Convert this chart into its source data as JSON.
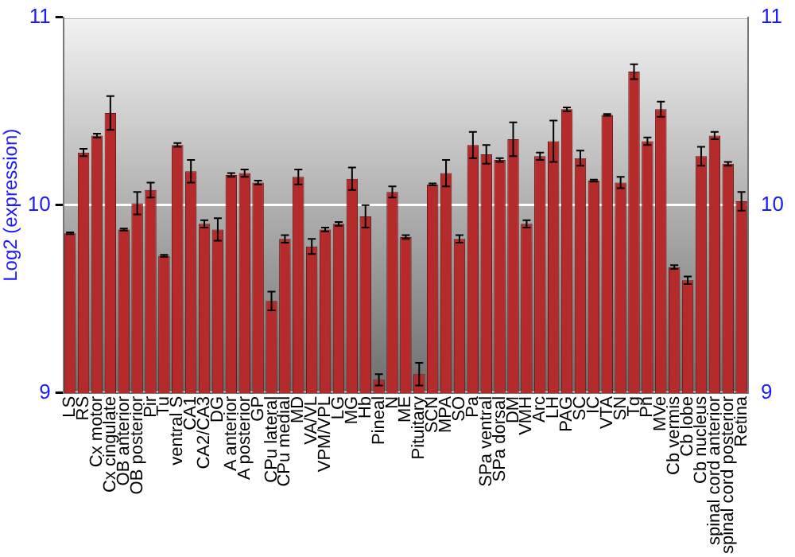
{
  "chart_data": {
    "type": "bar",
    "ylabel": "Log2 (expression)",
    "categories": [
      "LS",
      "RS",
      "Cx motor",
      "Cx cingulate",
      "OB anterior",
      "OB posterior",
      "Pir",
      "Tu",
      "ventral S",
      "CA1",
      "CA2/CA3",
      "DG",
      "A anterior",
      "A posterior",
      "GP",
      "CPu lateral",
      "CPu medial",
      "MD",
      "VA/VL",
      "VPM/VPL",
      "LG",
      "MG",
      "Hb",
      "Pineal",
      "N",
      "ME",
      "Pituitary",
      "SCN",
      "MPA",
      "SO",
      "Pa",
      "SPa ventral",
      "SPa dorsal",
      "DM",
      "VMH",
      "Arc",
      "LH",
      "PAG",
      "SC",
      "IC",
      "VTA",
      "SN",
      "Tg",
      "Pn",
      "MVe",
      "Cb vermis",
      "Cb lobe",
      "Cb nucleus",
      "spinal cord anterior",
      "spinal cord posterior",
      "Retina"
    ],
    "values": [
      9.85,
      10.28,
      10.37,
      10.49,
      9.87,
      10.01,
      10.08,
      9.73,
      10.32,
      10.18,
      9.9,
      9.87,
      10.16,
      10.17,
      10.12,
      9.49,
      9.82,
      10.15,
      9.78,
      9.87,
      9.9,
      10.14,
      9.94,
      9.07,
      10.07,
      9.83,
      9.1,
      10.11,
      10.17,
      9.82,
      10.32,
      10.27,
      10.24,
      10.35,
      9.9,
      10.26,
      10.34,
      10.51,
      10.25,
      10.13,
      10.48,
      10.12,
      10.71,
      10.34,
      10.51,
      9.67,
      9.6,
      10.26,
      10.37,
      10.22,
      10.02
    ],
    "errors": [
      0.005,
      0.02,
      0.01,
      0.09,
      0.005,
      0.06,
      0.04,
      0.005,
      0.01,
      0.06,
      0.02,
      0.06,
      0.01,
      0.02,
      0.01,
      0.05,
      0.02,
      0.04,
      0.04,
      0.01,
      0.01,
      0.06,
      0.06,
      0.03,
      0.03,
      0.01,
      0.06,
      0.005,
      0.07,
      0.02,
      0.07,
      0.05,
      0.01,
      0.09,
      0.02,
      0.02,
      0.11,
      0.01,
      0.04,
      0.005,
      0.005,
      0.03,
      0.04,
      0.02,
      0.04,
      0.01,
      0.02,
      0.05,
      0.02,
      0.01,
      0.05
    ],
    "color": "#b52a2a",
    "ylim": [
      9,
      11
    ],
    "yticks": [
      9,
      10,
      11
    ],
    "y2lim": [
      9,
      11
    ],
    "y2ticks": [
      9,
      10,
      11
    ],
    "grid": "y",
    "legend": false
  }
}
